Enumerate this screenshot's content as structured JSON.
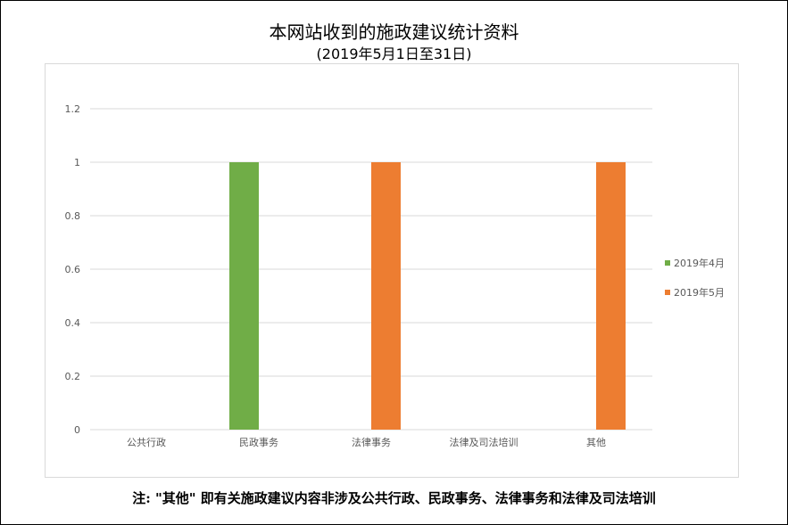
{
  "title": "本网站收到的施政建议统计资料",
  "subtitle": "(2019年5月1日至31日)",
  "footnote": "注: \"其他\" 即有关施政建议内容非涉及公共行政、民政事务、法律事务和法律及司法培训",
  "chart_data": {
    "type": "bar",
    "categories": [
      "公共行政",
      "民政事务",
      "法律事务",
      "法律及司法培训",
      "其他"
    ],
    "series": [
      {
        "name": "2019年4月",
        "color": "#70ad47",
        "values": [
          0,
          1,
          0,
          0,
          0
        ]
      },
      {
        "name": "2019年5月",
        "color": "#ed7d31",
        "values": [
          0,
          0,
          1,
          0,
          1
        ]
      }
    ],
    "ylim": [
      0,
      1.2
    ],
    "yticks": [
      "0",
      "0.2",
      "0.4",
      "0.6",
      "0.8",
      "1",
      "1.2"
    ],
    "grid": true,
    "legend_position": "right",
    "gridline_color": "#d9d9d9",
    "label_color": "#595959"
  }
}
